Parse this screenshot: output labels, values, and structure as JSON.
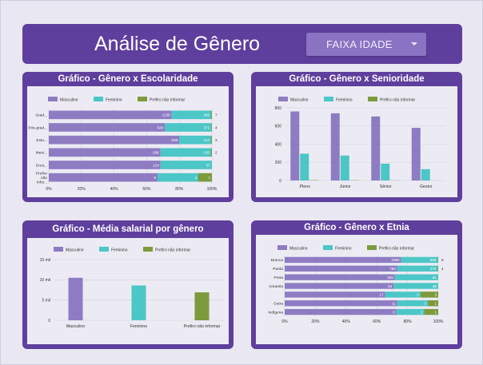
{
  "header": {
    "title": "Análise de Gênero",
    "filter_label": "FAIXA IDADE"
  },
  "legend_labels": {
    "m": "Masculino",
    "f": "Feminino",
    "p": "Prefiro não informar"
  },
  "colors": {
    "masculino": "#8e7cc3",
    "feminino": "#4cc6c6",
    "prefiro": "#7d9a3c",
    "card": "#5f3f9d"
  },
  "chart_data": [
    {
      "id": "escolaridade",
      "title": "Gráfico - Gênero x Escolaridade",
      "type": "bar",
      "orientation": "horizontal-stacked-100",
      "legend": "top-left",
      "categories": [
        "Grad...",
        "Pós-grad...",
        "Estu...",
        "Mest...",
        "Dout...",
        "Prefiro não infor..."
      ],
      "series": [
        {
          "name": "Masculino",
          "values": [
            1136,
            926,
            508,
            286,
            124,
            8
          ]
        },
        {
          "name": "Feminino",
          "values": [
            365,
            372,
            124,
            130,
            57,
            3
          ]
        },
        {
          "name": "Prefiro não informar",
          "values": [
            7,
            4,
            3,
            2,
            0,
            1
          ]
        }
      ],
      "xticks": [
        "0%",
        "20%",
        "40%",
        "60%",
        "80%",
        "100%"
      ]
    },
    {
      "id": "senioridade",
      "title": "Gráfico - Gênero x Senioridade",
      "type": "bar",
      "orientation": "vertical-grouped",
      "legend": "top-left",
      "categories": [
        "Pleno",
        "Júnior",
        "Sênior",
        "Gestor"
      ],
      "series": [
        {
          "name": "Masculino",
          "values": [
            760,
            740,
            705,
            580
          ]
        },
        {
          "name": "Feminino",
          "values": [
            295,
            275,
            185,
            125
          ]
        },
        {
          "name": "Prefiro não informar",
          "values": [
            4,
            3,
            2,
            1
          ]
        }
      ],
      "ylim": [
        0,
        800
      ],
      "yticks": [
        "0",
        "200",
        "400",
        "600",
        "800"
      ]
    },
    {
      "id": "salario",
      "title": "Gráfico - Média salarial por gênero",
      "type": "bar",
      "orientation": "vertical",
      "legend": "top-left",
      "categories": [
        "Masculino",
        "Feminino",
        "Prefiro não informar"
      ],
      "values": [
        10500,
        8600,
        6900
      ],
      "ylim": [
        0,
        15000
      ],
      "yticks": [
        "0",
        "5 mil",
        "10 mil",
        "15 mil"
      ]
    },
    {
      "id": "etnia",
      "title": "Gráfico - Gênero x Etnia",
      "type": "bar",
      "orientation": "horizontal-stacked-100",
      "legend": "top-left",
      "categories": [
        "Branca",
        "Parda",
        "Preta",
        "Amarela",
        "",
        "Outra",
        "Indígena"
      ],
      "series": [
        {
          "name": "Masculino",
          "values": [
            2092,
            780,
            206,
            93,
            17,
            11,
            8
          ]
        },
        {
          "name": "Feminino",
          "values": [
            658,
            279,
            81,
            38,
            6,
            3,
            2
          ]
        },
        {
          "name": "Prefiro não informar",
          "values": [
            8,
            4,
            0,
            0,
            3,
            1,
            1
          ]
        }
      ],
      "xticks": [
        "0%",
        "20%",
        "40%",
        "60%",
        "80%",
        "100%"
      ]
    }
  ]
}
